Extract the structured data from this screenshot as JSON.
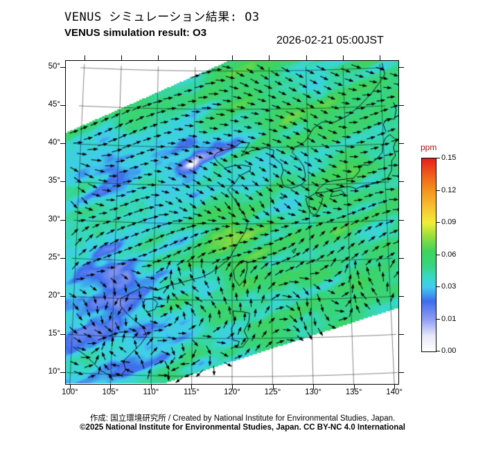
{
  "header": {
    "title_jp": "VENUS シミュレーション結果: O3",
    "title_en": "VENUS simulation result: O3",
    "timestamp": "2026-02-21 05:00JST"
  },
  "footer": {
    "credit_line": "作成: 国立環境研究所 / Created by National Institute for Environmental Studies, Japan.",
    "license_line": "©2025 National Institute for Environmental Studies, Japan. CC BY-NC 4.0 International"
  },
  "chart_data": {
    "type": "heatmap",
    "title": "VENUS simulation result: O3",
    "variable": "O3",
    "units": "ppm",
    "timestamp": "2026-02-21 05:00JST",
    "x_axis": {
      "tick_labels": [
        "100°",
        "105°",
        "110°",
        "115°",
        "120°",
        "125°",
        "130°",
        "135°",
        "140°"
      ],
      "range_lon": [
        99.5,
        140.5
      ]
    },
    "y_axis": {
      "tick_labels": [
        "50°",
        "45°",
        "40°",
        "35°",
        "30°",
        "25°",
        "20°",
        "15°",
        "10°"
      ],
      "range_lat": [
        8.5,
        50.8
      ]
    },
    "colorbar": {
      "label": "ppm",
      "label_color": "#a01010",
      "tick_labels": [
        "0.15",
        "0.12",
        "0.09",
        "0.06",
        "0.03",
        "0.01",
        "0.00"
      ],
      "tick_values": [
        0.15,
        0.12,
        0.09,
        0.06,
        0.03,
        0.01,
        0.0
      ],
      "stops": [
        {
          "f": 0.0,
          "c": "#ffffff"
        },
        {
          "f": 0.08,
          "c": "#e6eaf8"
        },
        {
          "f": 0.167,
          "c": "#8e9cf2"
        },
        {
          "f": 0.26,
          "c": "#3e6dec"
        },
        {
          "f": 0.333,
          "c": "#41ccee"
        },
        {
          "f": 0.38,
          "c": "#38d8cb"
        },
        {
          "f": 0.44,
          "c": "#37d583"
        },
        {
          "f": 0.52,
          "c": "#40d35b"
        },
        {
          "f": 0.6,
          "c": "#9bdf3b"
        },
        {
          "f": 0.667,
          "c": "#f2ee38"
        },
        {
          "f": 0.75,
          "c": "#f7c02e"
        },
        {
          "f": 0.833,
          "c": "#f4941f"
        },
        {
          "f": 0.92,
          "c": "#ee5a1a"
        },
        {
          "f": 1.0,
          "c": "#e81e1e"
        }
      ]
    },
    "field_grid": {
      "lons": [
        100,
        105,
        110,
        115,
        120,
        125,
        130,
        135,
        140
      ],
      "lats": [
        50,
        45,
        40,
        35,
        30,
        25,
        20,
        15,
        10
      ],
      "values_ppm": [
        [
          0.05,
          0.048,
          0.05,
          0.052,
          0.05,
          0.048,
          0.05,
          0.052,
          0.05
        ],
        [
          0.046,
          0.04,
          0.048,
          0.045,
          0.05,
          0.052,
          0.05,
          0.05,
          0.052
        ],
        [
          0.048,
          0.042,
          0.034,
          0.022,
          0.032,
          0.05,
          0.052,
          0.05,
          0.05
        ],
        [
          0.04,
          0.032,
          0.04,
          0.02,
          0.045,
          0.042,
          0.05,
          0.052,
          0.05
        ],
        [
          0.035,
          0.038,
          0.03,
          0.048,
          0.06,
          0.05,
          0.052,
          0.05,
          0.05
        ],
        [
          0.035,
          0.028,
          0.04,
          0.05,
          0.065,
          0.052,
          0.05,
          0.05,
          0.05
        ],
        [
          0.03,
          0.022,
          0.035,
          0.048,
          0.052,
          0.05,
          0.05,
          0.052,
          0.05
        ],
        [
          0.03,
          0.025,
          0.03,
          0.045,
          0.05,
          0.05,
          0.05,
          0.05,
          0.05
        ],
        [
          0.035,
          0.03,
          0.035,
          0.042,
          0.046,
          0.05,
          0.05,
          0.05,
          0.05
        ]
      ]
    },
    "wind_vectors": {
      "color": "#000000",
      "style": "arrow-grid"
    },
    "coastline_color": "#000000",
    "swath_polygon_frac": [
      [
        0,
        0.2227
      ],
      [
        0.4896,
        0
      ],
      [
        1,
        0
      ],
      [
        1,
        0.7645
      ],
      [
        0.2917,
        1
      ],
      [
        0,
        1
      ]
    ],
    "coastlines": [
      [
        [
          100.2,
          13.4
        ],
        [
          101.6,
          12.5
        ],
        [
          102.6,
          11.6
        ],
        [
          103.8,
          10.4
        ],
        [
          105.1,
          9.8
        ],
        [
          106.3,
          9.9
        ],
        [
          106.8,
          10.7
        ],
        [
          106.5,
          11.8
        ],
        [
          107.5,
          12.9
        ],
        [
          108.6,
          14.1
        ],
        [
          109.3,
          15.2
        ],
        [
          108.8,
          16.4
        ],
        [
          107.7,
          17.2
        ],
        [
          106.6,
          18.2
        ],
        [
          105.9,
          19.1
        ],
        [
          105.9,
          20.0
        ],
        [
          106.8,
          20.5
        ],
        [
          108.0,
          21.2
        ],
        [
          108.7,
          21.6
        ],
        [
          109.6,
          21.4
        ],
        [
          110.5,
          21.2
        ],
        [
          111.8,
          21.8
        ],
        [
          113.3,
          22.2
        ],
        [
          114.6,
          22.6
        ],
        [
          116.1,
          23.0
        ],
        [
          117.3,
          23.6
        ],
        [
          118.4,
          24.4
        ],
        [
          119.6,
          25.4
        ],
        [
          120.2,
          26.5
        ],
        [
          120.9,
          27.7
        ],
        [
          121.7,
          29.0
        ],
        [
          122.0,
          30.1
        ],
        [
          121.6,
          31.1
        ],
        [
          120.9,
          32.2
        ],
        [
          120.2,
          33.4
        ],
        [
          119.4,
          34.5
        ],
        [
          120.4,
          35.4
        ],
        [
          121.0,
          36.3
        ],
        [
          122.4,
          37.0
        ],
        [
          122.4,
          37.5
        ],
        [
          121.3,
          37.7
        ],
        [
          120.1,
          37.6
        ],
        [
          119.1,
          37.3
        ],
        [
          118.1,
          38.1
        ],
        [
          117.6,
          38.8
        ],
        [
          118.0,
          39.3
        ],
        [
          119.1,
          39.7
        ],
        [
          120.3,
          40.0
        ],
        [
          121.2,
          40.7
        ],
        [
          122.3,
          40.6
        ],
        [
          121.8,
          39.8
        ],
        [
          121.2,
          38.9
        ],
        [
          122.6,
          39.6
        ],
        [
          123.8,
          39.8
        ],
        [
          124.4,
          40.0
        ]
      ],
      [
        [
          124.4,
          40.0
        ],
        [
          125.5,
          39.6
        ],
        [
          125.4,
          38.7
        ],
        [
          126.5,
          37.8
        ],
        [
          126.7,
          36.9
        ],
        [
          126.4,
          36.0
        ],
        [
          126.7,
          34.9
        ],
        [
          127.7,
          34.6
        ],
        [
          128.7,
          34.9
        ],
        [
          129.4,
          35.3
        ],
        [
          129.6,
          36.3
        ],
        [
          129.4,
          37.4
        ],
        [
          128.7,
          38.5
        ],
        [
          127.9,
          39.3
        ],
        [
          128.3,
          40.0
        ],
        [
          129.2,
          40.3
        ],
        [
          129.9,
          41.0
        ],
        [
          130.8,
          42.4
        ]
      ],
      [
        [
          130.8,
          42.4
        ],
        [
          132.0,
          43.2
        ],
        [
          133.6,
          43.1
        ],
        [
          135.4,
          43.9
        ],
        [
          137.0,
          45.1
        ],
        [
          138.6,
          46.6
        ],
        [
          139.7,
          47.9
        ],
        [
          140.6,
          49.1
        ],
        [
          140.3,
          50.6
        ]
      ],
      [
        [
          130.9,
          33.9
        ],
        [
          132.1,
          34.0
        ],
        [
          133.4,
          34.4
        ],
        [
          134.8,
          34.6
        ],
        [
          135.4,
          34.6
        ],
        [
          136.2,
          34.3
        ],
        [
          137.2,
          34.7
        ],
        [
          138.7,
          34.9
        ],
        [
          139.7,
          35.2
        ],
        [
          140.4,
          35.6
        ],
        [
          140.9,
          36.5
        ],
        [
          141.0,
          37.8
        ],
        [
          141.5,
          38.4
        ],
        [
          141.3,
          39.5
        ],
        [
          141.7,
          40.5
        ],
        [
          140.9,
          41.2
        ],
        [
          140.3,
          40.8
        ],
        [
          139.9,
          39.9
        ],
        [
          139.8,
          38.9
        ],
        [
          138.9,
          38.0
        ],
        [
          137.9,
          37.3
        ],
        [
          137.3,
          37.4
        ],
        [
          136.8,
          37.3
        ],
        [
          136.7,
          36.6
        ],
        [
          135.9,
          35.7
        ],
        [
          134.8,
          35.6
        ],
        [
          133.5,
          35.5
        ],
        [
          132.4,
          35.3
        ],
        [
          131.4,
          34.6
        ],
        [
          130.9,
          33.9
        ]
      ],
      [
        [
          130.9,
          33.9
        ],
        [
          130.2,
          33.5
        ],
        [
          129.6,
          33.2
        ],
        [
          129.8,
          32.3
        ],
        [
          130.2,
          31.3
        ],
        [
          130.7,
          31.0
        ],
        [
          131.1,
          31.5
        ],
        [
          131.5,
          32.3
        ],
        [
          131.8,
          33.2
        ],
        [
          131.0,
          33.6
        ],
        [
          130.9,
          33.9
        ]
      ],
      [
        [
          132.8,
          33.4
        ],
        [
          133.8,
          33.5
        ],
        [
          134.6,
          33.8
        ],
        [
          134.2,
          34.2
        ],
        [
          133.1,
          34.0
        ],
        [
          132.8,
          33.4
        ]
      ],
      [
        [
          140.4,
          41.6
        ],
        [
          140.1,
          42.6
        ],
        [
          140.6,
          43.3
        ],
        [
          141.6,
          43.2
        ],
        [
          141.9,
          44.4
        ],
        [
          141.6,
          45.4
        ]
      ],
      [
        [
          121.9,
          25.1
        ],
        [
          121.0,
          25.1
        ],
        [
          120.2,
          23.9
        ],
        [
          120.3,
          22.8
        ],
        [
          120.9,
          21.9
        ],
        [
          121.6,
          22.7
        ],
        [
          121.9,
          24.0
        ],
        [
          121.9,
          25.1
        ]
      ],
      [
        [
          109.0,
          20.0
        ],
        [
          110.0,
          20.1
        ],
        [
          110.6,
          19.5
        ],
        [
          110.3,
          18.7
        ],
        [
          109.3,
          18.3
        ],
        [
          108.7,
          19.0
        ],
        [
          109.0,
          20.0
        ]
      ],
      [
        [
          120.1,
          18.6
        ],
        [
          121.3,
          18.5
        ],
        [
          122.2,
          18.3
        ],
        [
          122.1,
          17.2
        ],
        [
          121.5,
          16.0
        ],
        [
          122.0,
          14.9
        ],
        [
          121.3,
          13.9
        ],
        [
          120.6,
          13.8
        ],
        [
          120.9,
          14.6
        ],
        [
          120.1,
          14.8
        ],
        [
          119.9,
          16.3
        ],
        [
          120.3,
          17.0
        ],
        [
          120.1,
          18.6
        ]
      ],
      [
        [
          127.7,
          26.4
        ],
        [
          128.2,
          26.7
        ],
        [
          127.9,
          26.1
        ],
        [
          127.7,
          26.4
        ]
      ],
      [
        [
          126.2,
          33.4
        ],
        [
          126.9,
          33.5
        ],
        [
          126.6,
          33.2
        ],
        [
          126.2,
          33.4
        ]
      ]
    ]
  }
}
